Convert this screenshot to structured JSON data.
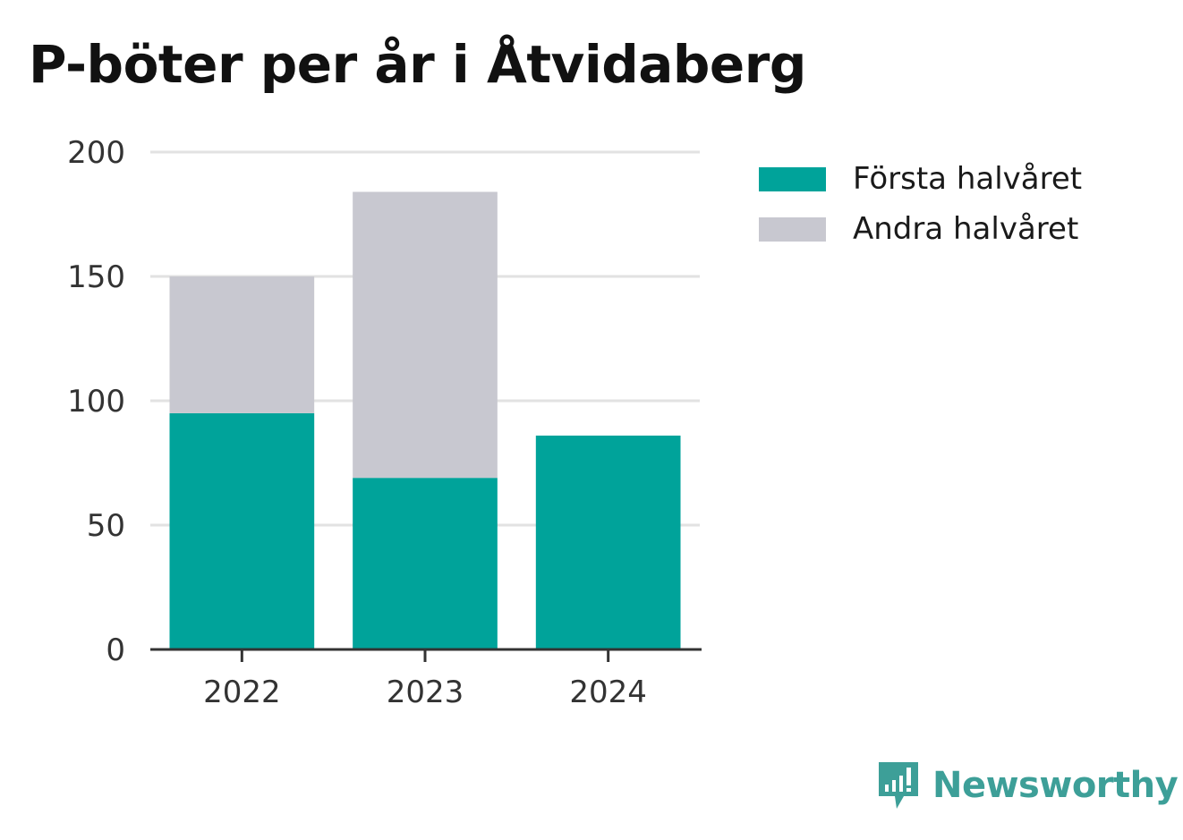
{
  "chart_data": {
    "type": "bar",
    "stacked": true,
    "title": "P-böter per år i Åtvidaberg",
    "xlabel": "",
    "ylabel": "",
    "categories": [
      "2022",
      "2023",
      "2024"
    ],
    "series": [
      {
        "name": "Första halvåret",
        "values": [
          95,
          69,
          86
        ],
        "color": "#00a39a"
      },
      {
        "name": "Andra halvåret",
        "values": [
          55,
          115,
          0
        ],
        "color": "#c8c8d0"
      }
    ],
    "ylim": [
      0,
      200
    ],
    "yticks": [
      0,
      50,
      100,
      150,
      200
    ],
    "grid": true,
    "legend_position": "top-right"
  },
  "brand": {
    "name": "Newsworthy",
    "icon": "newsworthy-logo-icon",
    "color": "#3d9f98"
  }
}
